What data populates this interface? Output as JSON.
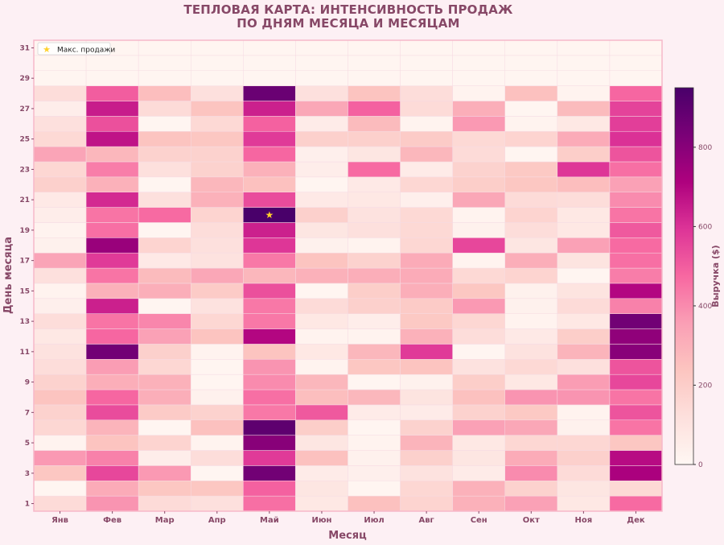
{
  "chart_data": {
    "type": "heatmap",
    "title_line1": "ТЕПЛОВАЯ КАРТА: ИНТЕНСИВНОСТЬ ПРОДАЖ",
    "title_line2": "ПО ДНЯМ МЕСЯЦА И МЕСЯЦАМ",
    "xlabel": "Месяц",
    "ylabel": "День месяца",
    "months": [
      "Янв",
      "Фев",
      "Мар",
      "Апр",
      "Май",
      "Июн",
      "Июл",
      "Авг",
      "Сен",
      "Окт",
      "Ноя",
      "Дек"
    ],
    "y_ticks": [
      1,
      3,
      5,
      7,
      9,
      11,
      13,
      15,
      17,
      19,
      21,
      23,
      25,
      27,
      29,
      31
    ],
    "days": 31,
    "colorbar": {
      "label": "Выручка ($)",
      "min": 0,
      "max": 950,
      "ticks": [
        0,
        200,
        400,
        600,
        800
      ]
    },
    "legend": {
      "label": "Макс. продажи",
      "marker": "★"
    },
    "max_point": {
      "month": "Май",
      "day": 20,
      "value": 950
    },
    "colors": {
      "text": "#874867",
      "star": "#ffd12b",
      "background": "#fdf0f4"
    },
    "values": [
      [
        140,
        380,
        140,
        120,
        460,
        80,
        250,
        170,
        300,
        350,
        80,
        470
      ],
      [
        10,
        320,
        230,
        230,
        490,
        90,
        10,
        160,
        300,
        180,
        90,
        150
      ],
      [
        230,
        550,
        370,
        10,
        850,
        60,
        40,
        110,
        60,
        400,
        140,
        720
      ],
      [
        370,
        420,
        50,
        130,
        580,
        250,
        30,
        190,
        90,
        320,
        190,
        690
      ],
      [
        20,
        240,
        170,
        20,
        800,
        90,
        20,
        290,
        80,
        160,
        160,
        230
      ],
      [
        160,
        290,
        10,
        250,
        900,
        200,
        10,
        180,
        350,
        330,
        30,
        450
      ],
      [
        180,
        540,
        210,
        180,
        440,
        510,
        60,
        60,
        180,
        220,
        20,
        520
      ],
      [
        240,
        480,
        310,
        30,
        460,
        260,
        280,
        100,
        250,
        380,
        380,
        450
      ],
      [
        180,
        310,
        300,
        10,
        400,
        280,
        10,
        30,
        200,
        80,
        360,
        550
      ],
      [
        130,
        360,
        160,
        10,
        380,
        20,
        230,
        240,
        110,
        150,
        120,
        520
      ],
      [
        110,
        850,
        190,
        20,
        240,
        80,
        280,
        580,
        10,
        110,
        290,
        800
      ],
      [
        80,
        480,
        350,
        240,
        700,
        20,
        20,
        300,
        130,
        70,
        200,
        780
      ],
      [
        130,
        450,
        410,
        160,
        440,
        80,
        50,
        220,
        160,
        20,
        80,
        850
      ],
      [
        40,
        640,
        10,
        110,
        440,
        140,
        190,
        210,
        370,
        30,
        140,
        420
      ],
      [
        20,
        300,
        310,
        210,
        530,
        10,
        200,
        310,
        230,
        30,
        100,
        700
      ],
      [
        120,
        450,
        270,
        330,
        280,
        300,
        310,
        320,
        150,
        170,
        10,
        430
      ],
      [
        340,
        580,
        70,
        110,
        440,
        240,
        180,
        320,
        20,
        310,
        100,
        460
      ],
      [
        30,
        760,
        170,
        120,
        590,
        30,
        20,
        160,
        550,
        90,
        350,
        470
      ],
      [
        20,
        460,
        10,
        130,
        640,
        90,
        120,
        150,
        30,
        130,
        80,
        510
      ],
      [
        50,
        450,
        470,
        170,
        950,
        190,
        110,
        150,
        20,
        170,
        80,
        450
      ],
      [
        70,
        620,
        120,
        300,
        540,
        70,
        80,
        40,
        330,
        140,
        130,
        400
      ],
      [
        190,
        300,
        10,
        280,
        250,
        10,
        70,
        160,
        200,
        230,
        260,
        350
      ],
      [
        160,
        430,
        120,
        180,
        300,
        50,
        470,
        60,
        180,
        220,
        590,
        460
      ],
      [
        340,
        280,
        180,
        180,
        480,
        40,
        90,
        280,
        140,
        10,
        200,
        520
      ],
      [
        150,
        670,
        240,
        230,
        580,
        190,
        190,
        210,
        150,
        170,
        320,
        600
      ],
      [
        120,
        530,
        10,
        150,
        490,
        60,
        270,
        20,
        370,
        20,
        80,
        570
      ],
      [
        50,
        650,
        140,
        240,
        640,
        330,
        490,
        140,
        310,
        10,
        270,
        560
      ],
      [
        130,
        500,
        260,
        120,
        870,
        120,
        240,
        130,
        20,
        250,
        20,
        480
      ],
      [
        10,
        10,
        10,
        10,
        10,
        10,
        10,
        10,
        10,
        10,
        10,
        10
      ],
      [
        10,
        10,
        10,
        10,
        10,
        10,
        10,
        10,
        10,
        10,
        10,
        10
      ],
      [
        10,
        10,
        10,
        10,
        10,
        10,
        10,
        10,
        10,
        10,
        10,
        10
      ]
    ]
  }
}
